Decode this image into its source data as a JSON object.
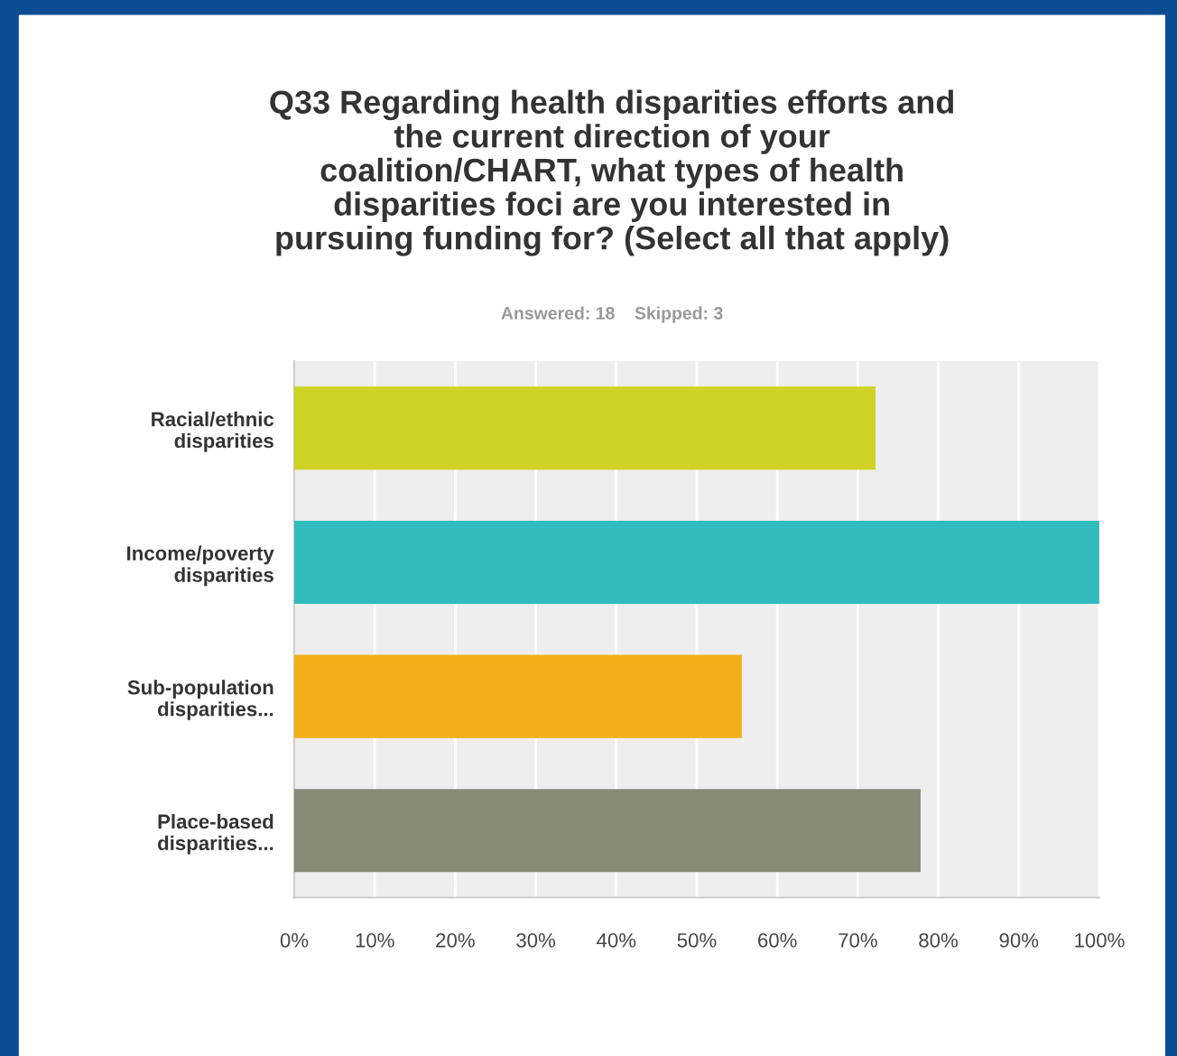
{
  "chart_data": {
    "type": "bar",
    "orientation": "horizontal",
    "title": "Q33 Regarding health disparities efforts and\nthe current direction of your\ncoalition/CHART, what types of health\ndisparities foci are you interested in\npursuing funding for? (Select all that apply)",
    "subtitle": "Answered: 18    Skipped: 3",
    "categories": [
      "Racial/ethnic\ndisparities",
      "Income/poverty\ndisparities",
      "Sub-population\ndisparities...",
      "Place-based\ndisparities..."
    ],
    "values": [
      72.2,
      100,
      55.6,
      77.8
    ],
    "colors": [
      "#cfd325",
      "#31bbbe",
      "#f3ae19",
      "#868a76"
    ],
    "xlim": [
      0,
      100
    ],
    "xticks": [
      {
        "value": 0,
        "label": "0%"
      },
      {
        "value": 10,
        "label": "10%"
      },
      {
        "value": 20,
        "label": "20%"
      },
      {
        "value": 30,
        "label": "30%"
      },
      {
        "value": 40,
        "label": "40%"
      },
      {
        "value": 50,
        "label": "50%"
      },
      {
        "value": 60,
        "label": "60%"
      },
      {
        "value": 70,
        "label": "70%"
      },
      {
        "value": 80,
        "label": "80%"
      },
      {
        "value": 90,
        "label": "90%"
      },
      {
        "value": 100,
        "label": "100%"
      }
    ],
    "grid": "x"
  }
}
